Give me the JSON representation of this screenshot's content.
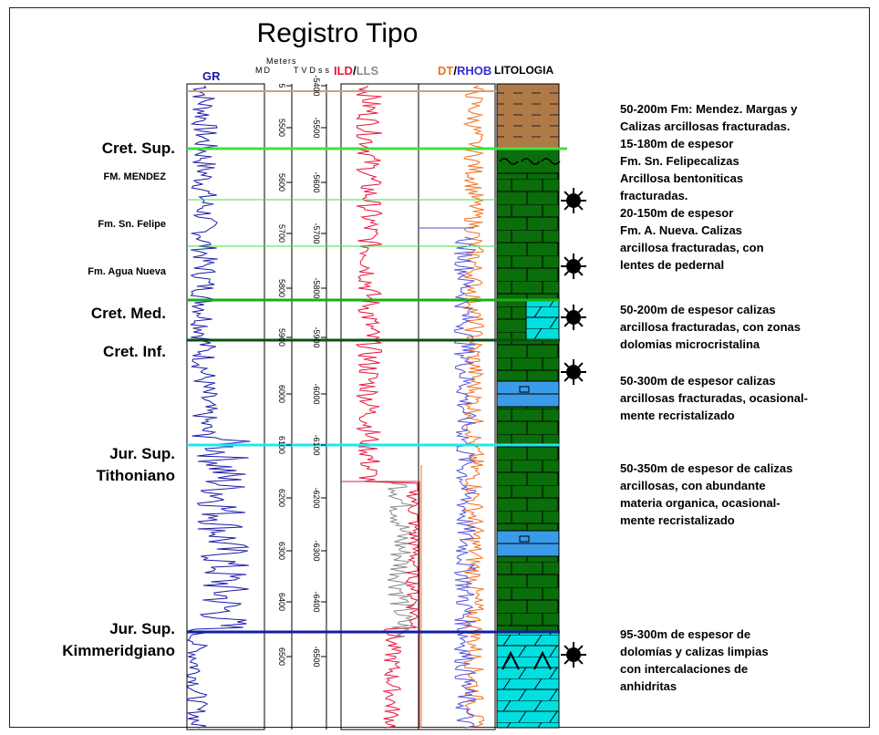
{
  "title": "Registro Tipo",
  "headers": {
    "gr": "GR",
    "meters": "Meters",
    "md": "MD",
    "tvdss": "TVDss",
    "ild": "ILD",
    "slash1": "/",
    "lls": "LLS",
    "dt": "DT",
    "slash2": "/",
    "rhob": "RHOB",
    "litologia": "LITOLOGIA"
  },
  "colors": {
    "gr_curve": "#1a1aa8",
    "ild_curve": "#e8143c",
    "lls_curve": "#8c8c8c",
    "dt_curve": "#f07020",
    "rhob_curve": "#5050e0",
    "limestone": "#0a6e0a",
    "marl": "#b07a48",
    "dolomite": "#00e0e0",
    "dolomite_blue": "#3a9ce8"
  },
  "formations": [
    {
      "label": "Cret. Sup.",
      "size": "big"
    },
    {
      "label": "FM. MENDEZ",
      "size": "small"
    },
    {
      "label": "Fm. Sn. Felipe",
      "size": "small"
    },
    {
      "label": "Fm. Agua Nueva",
      "size": "small"
    },
    {
      "label": "Cret. Med.",
      "size": "big"
    },
    {
      "label": "Cret. Inf.",
      "size": "big"
    },
    {
      "label": "Jur. Sup.",
      "size": "big"
    },
    {
      "label": "Tithoniano",
      "size": "big"
    },
    {
      "label": "Jur. Sup.",
      "size": "big"
    },
    {
      "label": "Kimmeridgiano",
      "size": "big"
    }
  ],
  "md_ticks": [
    "5",
    "5500",
    "5600",
    "5700",
    "5800",
    "5900",
    "6000",
    "6100",
    "6200",
    "6300",
    "6400",
    "6500"
  ],
  "tvd_ticks": [
    "-5400",
    "-5500",
    "-5600",
    "-5700",
    "-5800",
    "-5900",
    "-6000",
    "-6100",
    "-6200",
    "-6300",
    "-6400",
    "-6500"
  ],
  "descriptions": [
    "50-200m Fm: Mendez. Margas y\nCalizas arcillosas fracturadas.\n15-180m de espesor\nFm. Sn. Felipecalizas\nArcillosa bentoniticas\n fracturadas.\n20-150m de espesor\nFm. A. Nueva. Calizas\narcillosa fracturadas, con\nlentes de pedernal",
    "50-200m de espesor calizas\narcillosa fracturadas, con zonas\ndolomias microcristalina",
    "50-300m de espesor calizas\narcillosas fracturadas, ocasional-\nmente recristalizado",
    "50-350m de espesor de calizas\narcillosas, con abundante\nmateria organica, ocasional-\nmente recristalizado",
    "95-300m de espesor de\ndolomías y calizas limpias\ncon intercalaciones de\nanhidritas"
  ]
}
